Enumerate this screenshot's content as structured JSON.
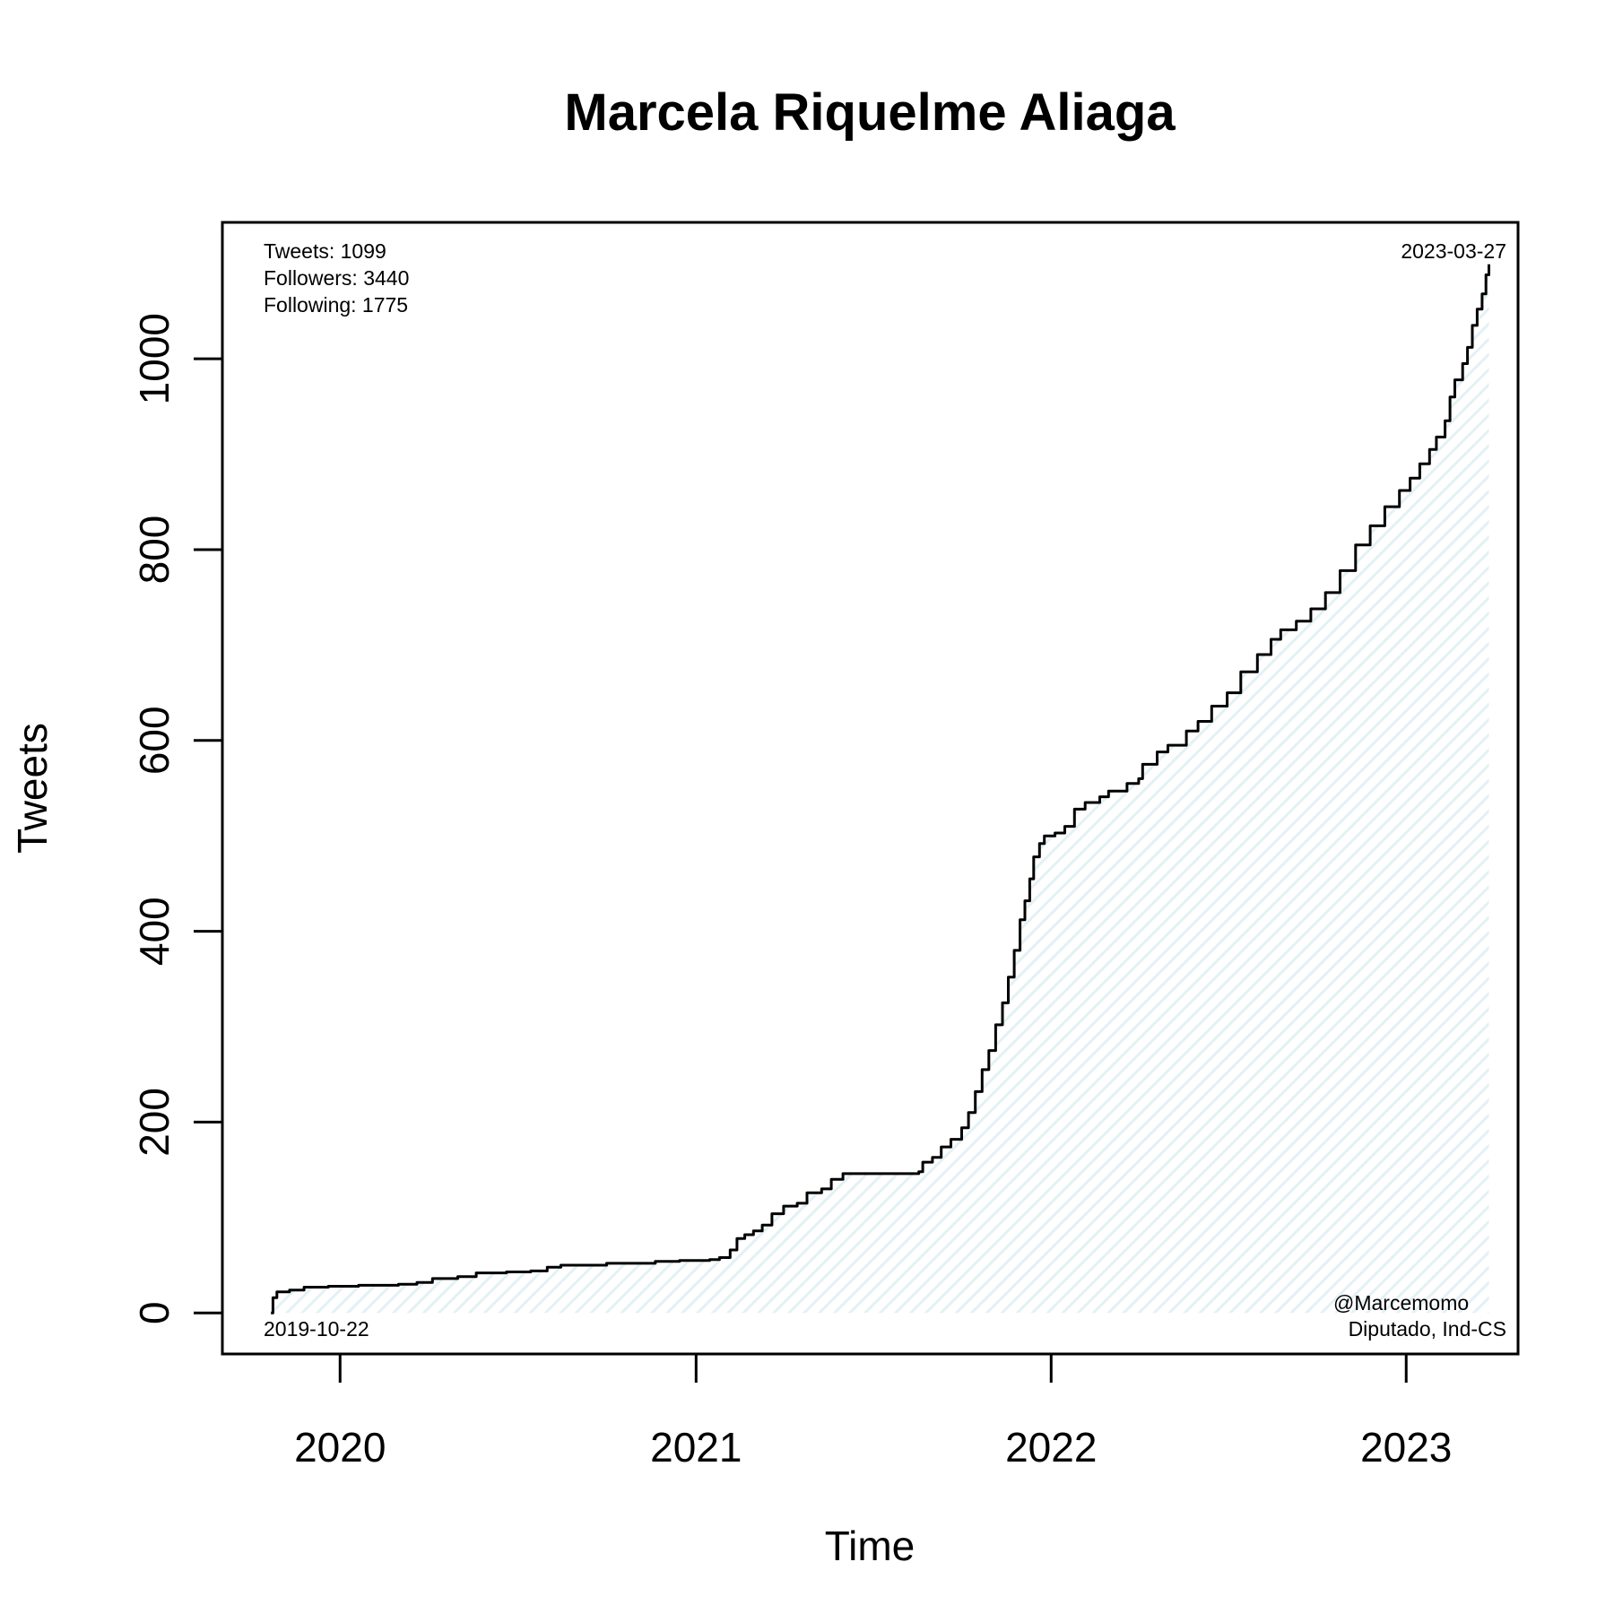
{
  "chart_data": {
    "type": "area",
    "title": "Marcela Riquelme Aliaga",
    "xlabel": "Time",
    "ylabel": "Tweets",
    "xlim": [
      "2019-09-02",
      "2023-04-26"
    ],
    "ylim": [
      -43,
      1143
    ],
    "x_ticks": [
      {
        "date": "2020-01-01",
        "label": "2020"
      },
      {
        "date": "2021-01-01",
        "label": "2021"
      },
      {
        "date": "2022-01-01",
        "label": "2022"
      },
      {
        "date": "2023-01-01",
        "label": "2023"
      }
    ],
    "y_ticks": [
      0,
      200,
      400,
      600,
      800,
      1000
    ],
    "fill_color": "#e3f1f5",
    "line_color": "#000000",
    "grid": false,
    "legend": "none",
    "annotations": {
      "stats": [
        "Tweets: 1099",
        "Followers: 3440",
        "Following: 1775"
      ],
      "start_date": "2019-10-22",
      "end_date": "2023-03-27",
      "handle": "@Marcemomo",
      "role": "Diputado, Ind-CS"
    },
    "series": [
      {
        "points": [
          [
            "2019-10-22",
            0
          ],
          [
            "2019-10-24",
            16
          ],
          [
            "2019-10-28",
            22
          ],
          [
            "2019-11-10",
            24
          ],
          [
            "2019-11-25",
            27
          ],
          [
            "2019-12-20",
            28
          ],
          [
            "2020-01-20",
            29
          ],
          [
            "2020-03-01",
            30
          ],
          [
            "2020-03-20",
            32
          ],
          [
            "2020-04-05",
            36
          ],
          [
            "2020-05-01",
            38
          ],
          [
            "2020-05-20",
            42
          ],
          [
            "2020-06-20",
            43
          ],
          [
            "2020-07-15",
            44
          ],
          [
            "2020-08-01",
            48
          ],
          [
            "2020-08-15",
            50
          ],
          [
            "2020-10-01",
            52
          ],
          [
            "2020-11-20",
            54
          ],
          [
            "2020-12-15",
            55
          ],
          [
            "2021-01-15",
            56
          ],
          [
            "2021-01-25",
            58
          ],
          [
            "2021-02-05",
            66
          ],
          [
            "2021-02-12",
            78
          ],
          [
            "2021-02-20",
            82
          ],
          [
            "2021-03-01",
            86
          ],
          [
            "2021-03-10",
            92
          ],
          [
            "2021-03-20",
            104
          ],
          [
            "2021-04-01",
            112
          ],
          [
            "2021-04-15",
            115
          ],
          [
            "2021-04-25",
            126
          ],
          [
            "2021-05-10",
            130
          ],
          [
            "2021-05-20",
            140
          ],
          [
            "2021-06-01",
            146
          ],
          [
            "2021-07-01",
            146
          ],
          [
            "2021-08-18",
            148
          ],
          [
            "2021-08-22",
            158
          ],
          [
            "2021-09-01",
            163
          ],
          [
            "2021-09-10",
            174
          ],
          [
            "2021-09-20",
            182
          ],
          [
            "2021-10-01",
            194
          ],
          [
            "2021-10-08",
            210
          ],
          [
            "2021-10-15",
            232
          ],
          [
            "2021-10-22",
            255
          ],
          [
            "2021-10-29",
            275
          ],
          [
            "2021-11-05",
            302
          ],
          [
            "2021-11-12",
            325
          ],
          [
            "2021-11-18",
            352
          ],
          [
            "2021-11-24",
            380
          ],
          [
            "2021-11-30",
            412
          ],
          [
            "2021-12-05",
            432
          ],
          [
            "2021-12-10",
            455
          ],
          [
            "2021-12-14",
            478
          ],
          [
            "2021-12-20",
            492
          ],
          [
            "2021-12-25",
            500
          ],
          [
            "2022-01-05",
            503
          ],
          [
            "2022-01-15",
            510
          ],
          [
            "2022-01-25",
            528
          ],
          [
            "2022-02-05",
            535
          ],
          [
            "2022-02-20",
            541
          ],
          [
            "2022-03-01",
            547
          ],
          [
            "2022-03-20",
            555
          ],
          [
            "2022-04-01",
            560
          ],
          [
            "2022-04-05",
            575
          ],
          [
            "2022-04-20",
            588
          ],
          [
            "2022-05-01",
            595
          ],
          [
            "2022-05-20",
            610
          ],
          [
            "2022-06-01",
            620
          ],
          [
            "2022-06-15",
            636
          ],
          [
            "2022-07-01",
            650
          ],
          [
            "2022-07-15",
            672
          ],
          [
            "2022-08-01",
            690
          ],
          [
            "2022-08-15",
            706
          ],
          [
            "2022-08-25",
            716
          ],
          [
            "2022-09-10",
            725
          ],
          [
            "2022-09-25",
            738
          ],
          [
            "2022-10-10",
            755
          ],
          [
            "2022-10-25",
            778
          ],
          [
            "2022-11-10",
            805
          ],
          [
            "2022-11-25",
            825
          ],
          [
            "2022-12-10",
            845
          ],
          [
            "2022-12-25",
            862
          ],
          [
            "2023-01-05",
            875
          ],
          [
            "2023-01-15",
            890
          ],
          [
            "2023-01-25",
            905
          ],
          [
            "2023-02-01",
            918
          ],
          [
            "2023-02-10",
            935
          ],
          [
            "2023-02-15",
            960
          ],
          [
            "2023-02-20",
            978
          ],
          [
            "2023-02-28",
            995
          ],
          [
            "2023-03-05",
            1012
          ],
          [
            "2023-03-10",
            1035
          ],
          [
            "2023-03-15",
            1052
          ],
          [
            "2023-03-20",
            1068
          ],
          [
            "2023-03-24",
            1088
          ],
          [
            "2023-03-27",
            1099
          ]
        ]
      }
    ]
  }
}
